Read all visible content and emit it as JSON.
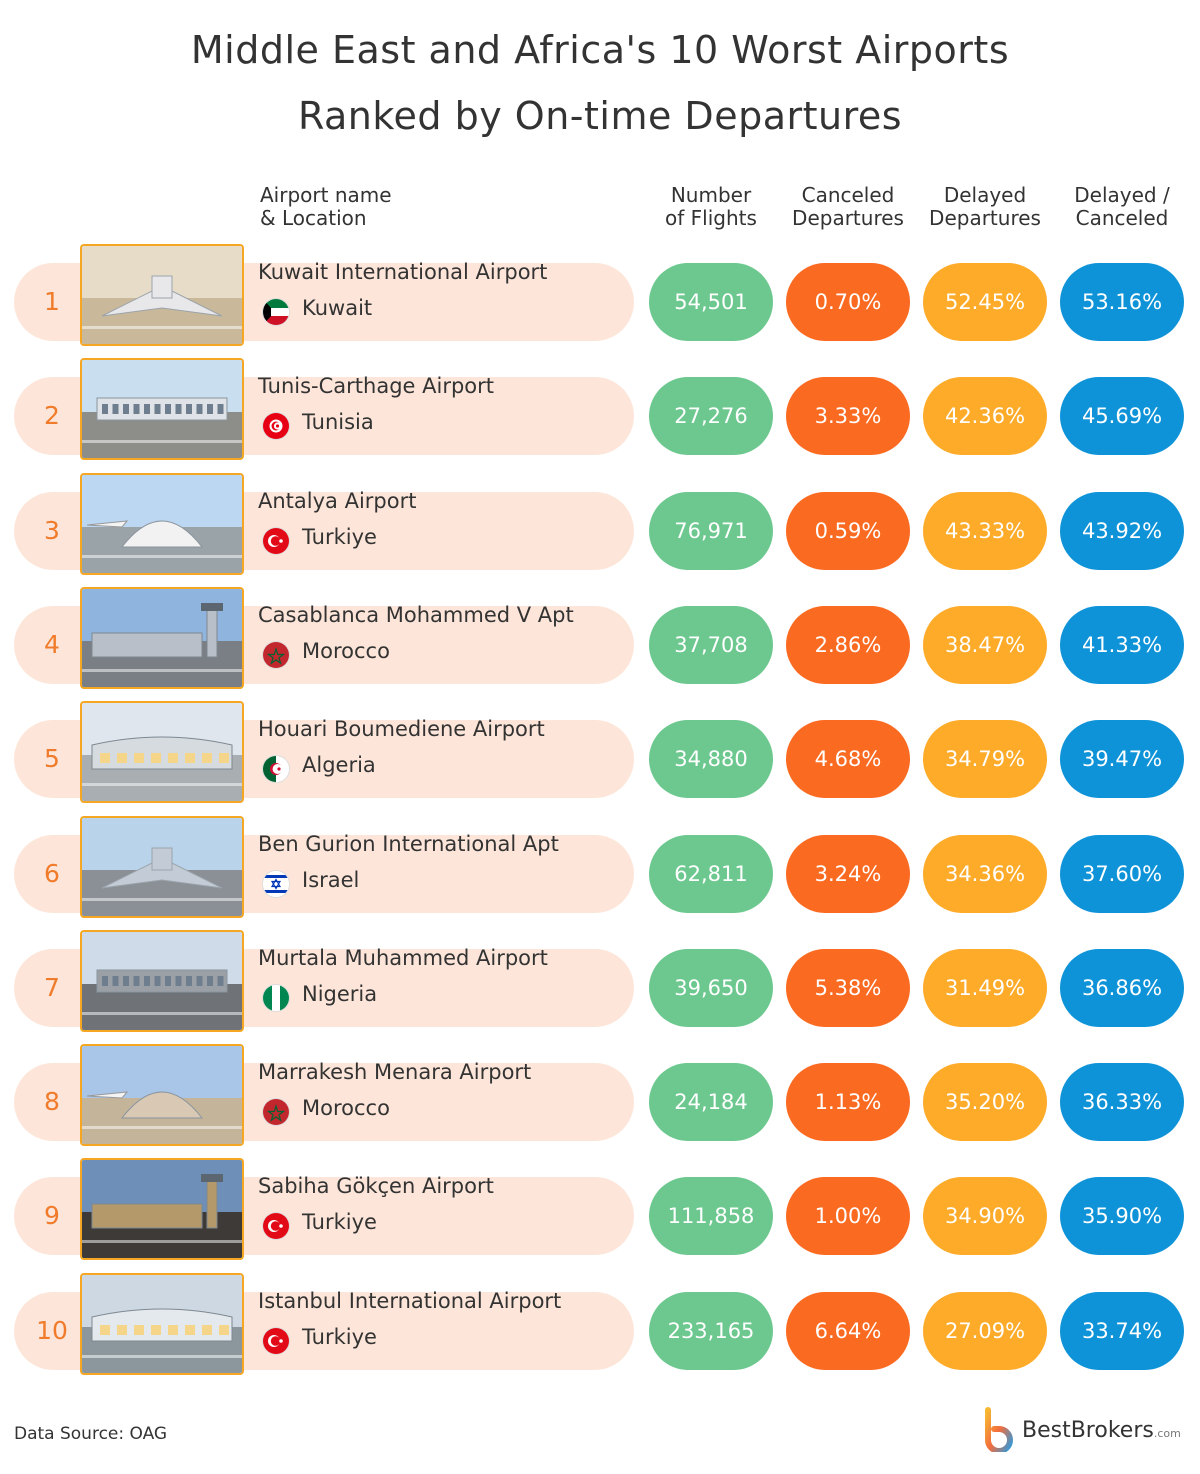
{
  "chart_data": {
    "type": "table",
    "title": "Middle East and Africa's 10 Worst Airports",
    "subtitle": "Ranked by On-time Departures",
    "columns": [
      {
        "line1": "Airport name",
        "line2": "& Location"
      },
      {
        "line1": "Number",
        "line2": "of Flights"
      },
      {
        "line1": "Canceled",
        "line2": "Departures"
      },
      {
        "line1": "Delayed",
        "line2": "Departures"
      },
      {
        "line1": "Delayed /",
        "line2": "Canceled"
      }
    ],
    "rows": [
      {
        "rank": "1",
        "airport": "Kuwait International Airport",
        "country": "Kuwait",
        "flights": "54,501",
        "canceled": "0.70%",
        "delayed": "52.45%",
        "delayed_canceled": "53.16%"
      },
      {
        "rank": "2",
        "airport": "Tunis-Carthage Airport",
        "country": "Tunisia",
        "flights": "27,276",
        "canceled": "3.33%",
        "delayed": "42.36%",
        "delayed_canceled": "45.69%"
      },
      {
        "rank": "3",
        "airport": "Antalya Airport",
        "country": "Turkiye",
        "flights": "76,971",
        "canceled": "0.59%",
        "delayed": "43.33%",
        "delayed_canceled": "43.92%"
      },
      {
        "rank": "4",
        "airport": "Casablanca Mohammed V Apt",
        "country": "Morocco",
        "flights": "37,708",
        "canceled": "2.86%",
        "delayed": "38.47%",
        "delayed_canceled": "41.33%"
      },
      {
        "rank": "5",
        "airport": "Houari Boumediene Airport",
        "country": "Algeria",
        "flights": "34,880",
        "canceled": "4.68%",
        "delayed": "34.79%",
        "delayed_canceled": "39.47%"
      },
      {
        "rank": "6",
        "airport": "Ben Gurion International Apt",
        "country": "Israel",
        "flights": "62,811",
        "canceled": "3.24%",
        "delayed": "34.36%",
        "delayed_canceled": "37.60%"
      },
      {
        "rank": "7",
        "airport": "Murtala Muhammed Airport",
        "country": "Nigeria",
        "flights": "39,650",
        "canceled": "5.38%",
        "delayed": "31.49%",
        "delayed_canceled": "36.86%"
      },
      {
        "rank": "8",
        "airport": "Marrakesh Menara Airport",
        "country": "Morocco",
        "flights": "24,184",
        "canceled": "1.13%",
        "delayed": "35.20%",
        "delayed_canceled": "36.33%"
      },
      {
        "rank": "9",
        "airport": "Sabiha Gökçen Airport",
        "country": "Turkiye",
        "flights": "111,858",
        "canceled": "1.00%",
        "delayed": "34.90%",
        "delayed_canceled": "35.90%"
      },
      {
        "rank": "10",
        "airport": "Istanbul International Airport",
        "country": "Turkiye",
        "flights": "233,165",
        "canceled": "6.64%",
        "delayed": "27.09%",
        "delayed_canceled": "33.74%"
      }
    ],
    "colors": {
      "flights": "#6cc88e",
      "canceled": "#fb6a21",
      "delayed": "#fdab29",
      "delayed_canceled": "#0f93d8",
      "strip": "#fde6d9",
      "rank": "#f07b2a"
    }
  },
  "footer": {
    "source": "Data Source: OAG",
    "brand": "BestBrokers",
    "brand_domain": ".com"
  },
  "icons": [
    "airport-photo-icon",
    "country-flag-icon",
    "bestbrokers-logo-icon"
  ]
}
